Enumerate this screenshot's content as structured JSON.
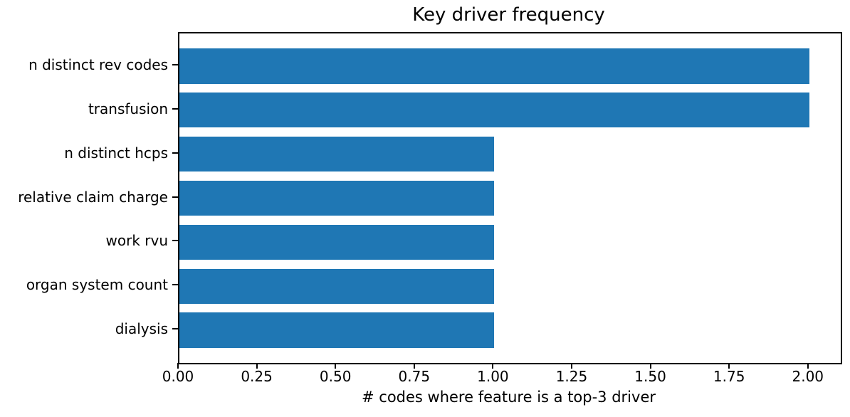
{
  "figure": {
    "background_color": "#ffffff",
    "text_color": "#000000"
  },
  "chart_data": {
    "type": "bar",
    "orientation": "horizontal",
    "title": "Key driver frequency",
    "xlabel": "# codes where feature is a top-3 driver",
    "ylabel": "",
    "categories": [
      "n distinct rev codes",
      "transfusion",
      "n distinct hcps",
      "relative claim charge",
      "work rvu",
      "organ system count",
      "dialysis"
    ],
    "values": [
      2,
      2,
      1,
      1,
      1,
      1,
      1
    ],
    "bar_color": "#1f77b4",
    "xlim": [
      0,
      2.1
    ],
    "xticks": [
      0.0,
      0.25,
      0.5,
      0.75,
      1.0,
      1.25,
      1.5,
      1.75,
      2.0
    ],
    "xtick_labels": [
      "0.00",
      "0.25",
      "0.50",
      "0.75",
      "1.00",
      "1.25",
      "1.50",
      "1.75",
      "2.00"
    ],
    "grid": false,
    "legend": "none"
  }
}
